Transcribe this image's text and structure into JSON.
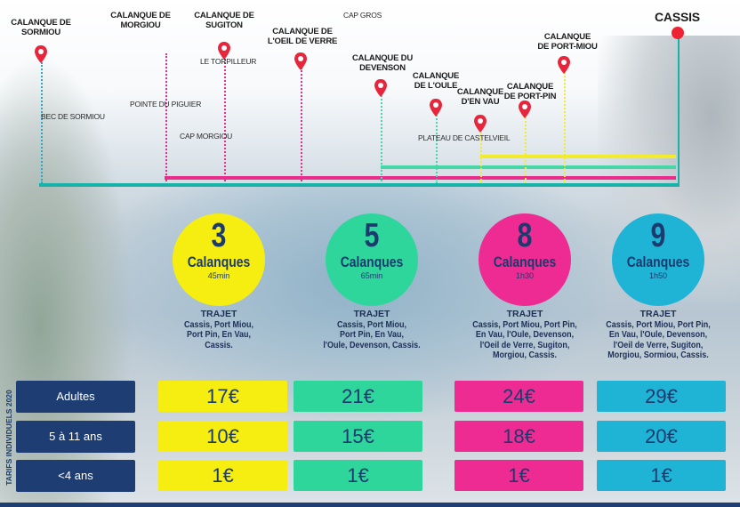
{
  "map": {
    "places": {
      "sormiou": "CALANQUE DE\nSORMIOU",
      "morgiou": "CALANQUE DE\nMORGIOU",
      "sugiton": "CALANQUE DE\nSUGITON",
      "torpilleur": "LE TORPILLEUR",
      "oeil_de_verre": "CALANQUE DE\nL'OEIL DE VERRE",
      "cap_gros": "CAP GROS",
      "devenson": "CALANQUE DU\nDEVENSON",
      "oule": "CALANQUE\nDE L'OULE",
      "en_vau": "CALANQUE\nD'EN VAU",
      "port_pin": "CALANQUE\nDE PORT-PIN",
      "port_miou": "CALANQUE\nDE PORT-MIOU",
      "cassis": "CASSIS",
      "bec_sormiou": "BEC DE SORMIOU",
      "pointe_piguier": "POINTE DU PIGUIER",
      "cap_morgiou": "CAP MORGIOU",
      "plateau_castelvieil": "PLATEAU DE CASTELVIEIL"
    },
    "colors": {
      "teal": "#18b2a8",
      "pink": "#ea2c8c",
      "yellow": "#f2ec2a",
      "cyan": "#2aa7cc",
      "green": "#47d6a6"
    }
  },
  "offers": [
    {
      "count": "3",
      "word": "Calanques",
      "duration": "45min",
      "trajet_title": "TRAJET",
      "stops": "Cassis, Port Miou,\nPort Pin, En Vau,\nCassis.",
      "color": "#f5ee10"
    },
    {
      "count": "5",
      "word": "Calanques",
      "duration": "65min",
      "trajet_title": "TRAJET",
      "stops": "Cassis, Port Miou,\nPort Pin, En Vau,\nl'Oule, Devenson, Cassis.",
      "color": "#2fd69c"
    },
    {
      "count": "8",
      "word": "Calanques",
      "duration": "1h30",
      "trajet_title": "TRAJET",
      "stops": "Cassis, Port Miou, Port Pin,\nEn Vau, l'Oule, Devenson,\nl'Oeil de Verre, Sugiton,\nMorgiou, Cassis.",
      "color": "#ee2b92"
    },
    {
      "count": "9",
      "word": "Calanques",
      "duration": "1h50",
      "trajet_title": "TRAJET",
      "stops": "Cassis, Port Miou, Port Pin,\nEn Vau, l'Oule, Devenson,\nl'Oeil de Verre, Sugiton,\nMorgiou, Sormiou, Cassis.",
      "color": "#1fb4d6"
    }
  ],
  "tarifs": {
    "side_label": "TARIFS INDIVIDUELS 2020",
    "rows": [
      {
        "label": "Adultes",
        "prices": [
          "17€",
          "21€",
          "24€",
          "29€"
        ]
      },
      {
        "label": "5 à 11 ans",
        "prices": [
          "10€",
          "15€",
          "18€",
          "20€"
        ]
      },
      {
        "label": "<4 ans",
        "prices": [
          "1€",
          "1€",
          "1€",
          "1€"
        ]
      }
    ],
    "row_colors": [
      [
        "#f5ee10",
        "#2fd69c",
        "#ee2b92",
        "#1fb4d6"
      ],
      [
        "#f5ee10",
        "#2fd69c",
        "#ee2b92",
        "#1fb4d6"
      ],
      [
        "#f5ee10",
        "#2fd69c",
        "#ee2b92",
        "#1fb4d6"
      ]
    ]
  }
}
